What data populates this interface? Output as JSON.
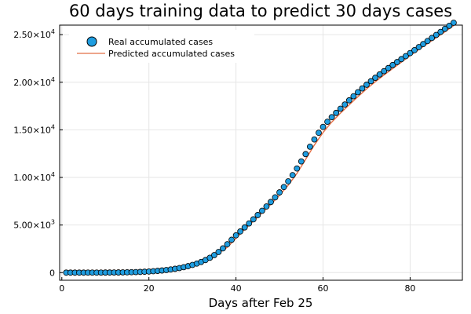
{
  "chart_data": {
    "type": "scatter",
    "title": "60 days training data to predict 30 days cases",
    "xlabel": "Days after Feb 25",
    "ylabel": "",
    "xlim": [
      -0.5,
      92
    ],
    "ylim": [
      -800,
      26000
    ],
    "xticks": [
      0,
      20,
      40,
      60,
      80
    ],
    "yticks": [
      0,
      5000,
      10000,
      15000,
      20000,
      25000
    ],
    "ytick_labels": [
      {
        "value": 0,
        "mantissa": "0",
        "exponent": ""
      },
      {
        "value": 5000,
        "mantissa": "5.00×10",
        "exponent": "3"
      },
      {
        "value": 10000,
        "mantissa": "1.00×10",
        "exponent": "4"
      },
      {
        "value": 15000,
        "mantissa": "1.50×10",
        "exponent": "4"
      },
      {
        "value": 20000,
        "mantissa": "2.00×10",
        "exponent": "4"
      },
      {
        "value": 25000,
        "mantissa": "2.50×10",
        "exponent": "4"
      }
    ],
    "grid": true,
    "legend_position": "top-left",
    "series": [
      {
        "name": "Real accumulated cases",
        "kind": "scatter",
        "color": "#1f9de0",
        "x": [
          1,
          2,
          3,
          4,
          5,
          6,
          7,
          8,
          9,
          10,
          11,
          12,
          13,
          14,
          15,
          16,
          17,
          18,
          19,
          20,
          21,
          22,
          23,
          24,
          25,
          26,
          27,
          28,
          29,
          30,
          31,
          32,
          33,
          34,
          35,
          36,
          37,
          38,
          39,
          40,
          41,
          42,
          43,
          44,
          45,
          46,
          47,
          48,
          49,
          50,
          51,
          52,
          53,
          54,
          55,
          56,
          57,
          58,
          59,
          60,
          61,
          62,
          63,
          64,
          65,
          66,
          67,
          68,
          69,
          70,
          71,
          72,
          73,
          74,
          75,
          76,
          77,
          78,
          79,
          80,
          81,
          82,
          83,
          84,
          85,
          86,
          87,
          88,
          89,
          90
        ],
        "y": [
          0,
          0,
          0,
          0,
          0,
          1,
          2,
          3,
          5,
          8,
          11,
          15,
          20,
          26,
          34,
          44,
          57,
          73,
          93,
          117,
          147,
          183,
          225,
          275,
          333,
          401,
          480,
          572,
          680,
          805,
          950,
          1120,
          1320,
          1560,
          1840,
          2170,
          2550,
          2980,
          3450,
          3920,
          4330,
          4750,
          5170,
          5600,
          6050,
          6500,
          6950,
          7420,
          7910,
          8430,
          8990,
          9590,
          10240,
          10940,
          11680,
          12450,
          13230,
          13990,
          14690,
          15310,
          15850,
          16330,
          16780,
          17220,
          17660,
          18100,
          18530,
          18950,
          19350,
          19740,
          20110,
          20470,
          20820,
          21160,
          21490,
          21810,
          22120,
          22430,
          22740,
          23060,
          23370,
          23690,
          24010,
          24330,
          24650,
          24970,
          25290,
          25610,
          25930,
          26250
        ]
      },
      {
        "name": "Predicted accumulated cases",
        "kind": "line",
        "color": "#e26f46",
        "x": [
          1,
          5,
          10,
          15,
          20,
          25,
          28,
          30,
          32,
          34,
          36,
          38,
          40,
          42,
          44,
          46,
          48,
          50,
          52,
          54,
          56,
          58,
          60,
          62,
          64,
          66,
          68,
          70,
          72,
          74,
          76,
          78,
          80,
          82,
          84,
          86,
          88,
          90
        ],
        "y": [
          0,
          0,
          6,
          30,
          110,
          320,
          560,
          790,
          1100,
          1520,
          2030,
          2660,
          3600,
          4560,
          5410,
          6280,
          7180,
          8120,
          9180,
          10420,
          11900,
          13400,
          14720,
          15820,
          16750,
          17620,
          18480,
          19300,
          20050,
          20760,
          21440,
          22110,
          22790,
          23440,
          24060,
          24680,
          25300,
          25950
        ]
      }
    ]
  }
}
